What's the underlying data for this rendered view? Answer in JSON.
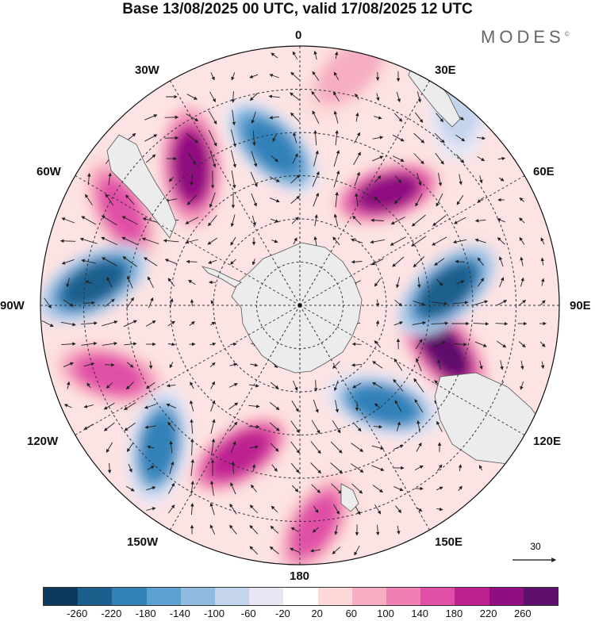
{
  "title": "Base 13/08/2025 00 UTC, valid 17/08/2025 12 UTC",
  "brand": "MODES",
  "brand_mark": "©",
  "longitude_labels": {
    "lon_0": "0",
    "lon_30e": "30E",
    "lon_60e": "60E",
    "lon_90e": "90E",
    "lon_120e": "120E",
    "lon_150e": "150E",
    "lon_180": "180",
    "lon_150w": "150W",
    "lon_120w": "120W",
    "lon_90w": "90W",
    "lon_60w": "60W",
    "lon_30w": "30W"
  },
  "reference_vector": {
    "value": "30"
  },
  "colorbar": {
    "colors": [
      "#0d3a5c",
      "#1a5e8c",
      "#3281b9",
      "#5ba0cf",
      "#90bbdf",
      "#c4d4ec",
      "#e6e6f4",
      "#ffffff",
      "#fcd9d8",
      "#f7aec2",
      "#ef80b5",
      "#e04fa6",
      "#bd2290",
      "#8f0e80",
      "#5e0f6d"
    ],
    "tick_labels": [
      "-260",
      "-220",
      "-180",
      "-140",
      "-100",
      "-60",
      "-20",
      "20",
      "60",
      "100",
      "140",
      "180",
      "220",
      "260"
    ]
  },
  "field_anomalies": [
    {
      "name": "anomaly-negative-atlantic",
      "lon": -10,
      "colat": 0.62,
      "v": -210
    },
    {
      "name": "anomaly-positive-60w",
      "lon": -38,
      "colat": 0.68,
      "v": 250
    },
    {
      "name": "anomaly-positive-70w",
      "lon": -62,
      "colat": 0.78,
      "v": 160
    },
    {
      "name": "anomaly-negative-90w",
      "lon": -84,
      "colat": 0.8,
      "v": -260
    },
    {
      "name": "anomaly-positive-110w",
      "lon": -110,
      "colat": 0.78,
      "v": 140
    },
    {
      "name": "anomaly-negative-130w",
      "lon": -135,
      "colat": 0.77,
      "v": -190
    },
    {
      "name": "anomaly-positive-155w",
      "lon": -158,
      "colat": 0.62,
      "v": 200
    },
    {
      "name": "anomaly-positive-180",
      "lon": 176,
      "colat": 0.85,
      "v": 170
    },
    {
      "name": "anomaly-negative-150e",
      "lon": 140,
      "colat": 0.5,
      "v": -200
    },
    {
      "name": "anomaly-positive-110e",
      "lon": 107,
      "colat": 0.58,
      "v": 270
    },
    {
      "name": "anomaly-negative-85e",
      "lon": 84,
      "colat": 0.57,
      "v": -260
    },
    {
      "name": "anomaly-positive-40e",
      "lon": 38,
      "colat": 0.55,
      "v": 230
    },
    {
      "name": "anomaly-positive-10e",
      "lon": 12,
      "colat": 0.92,
      "v": 90
    },
    {
      "name": "anomaly-negative-35e",
      "lon": 38,
      "colat": 1.0,
      "v": -90
    }
  ]
}
